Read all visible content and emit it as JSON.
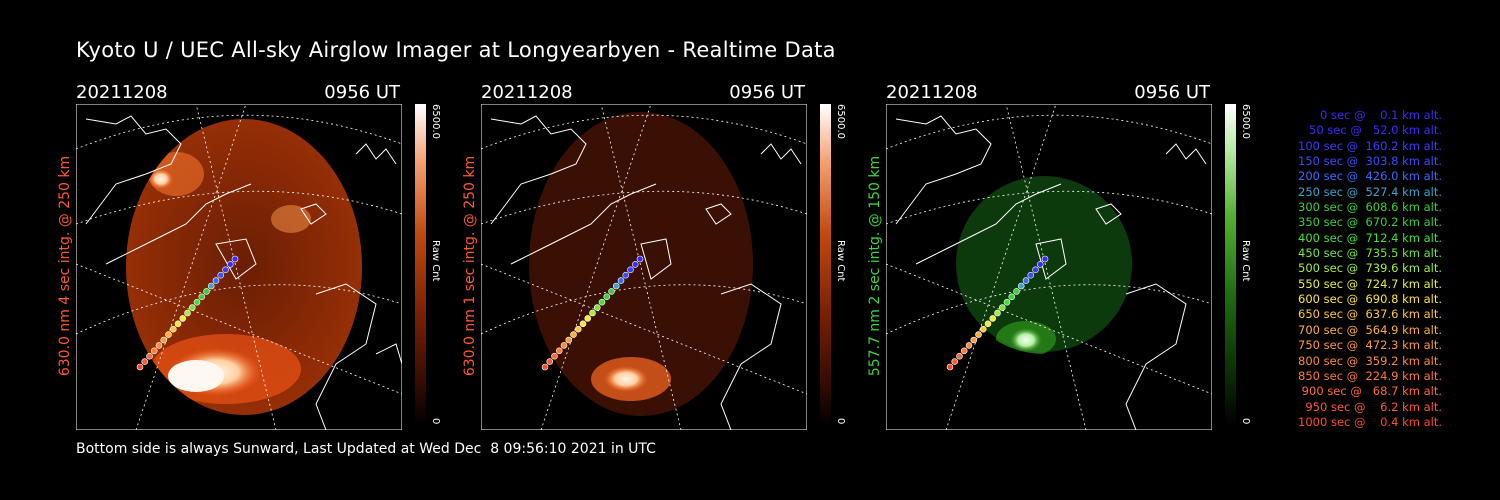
{
  "title": "Kyoto U / UEC All-sky Airglow Imager at Longyearbyen - Realtime Data",
  "panels": [
    {
      "date": "20211208",
      "time": "0956 UT",
      "ylabel": "630.0 nm 4 sec intg. @ 250 km",
      "cbar_max": "6500.0",
      "cbar_unit": "Raw Cnt",
      "cbar_min": "0",
      "color": "#ff5a2a"
    },
    {
      "date": "20211208",
      "time": "0956 UT",
      "ylabel": "630.0 nm 1 sec intg. @ 250 km",
      "cbar_max": "6500.0",
      "cbar_unit": "Raw Cnt",
      "cbar_min": "0",
      "color": "#ff5a2a"
    },
    {
      "date": "20211208",
      "time": "0956 UT",
      "ylabel": "557.7 nm 2 sec intg. @ 150 km",
      "cbar_max": "6500.0",
      "cbar_unit": "Raw Cnt",
      "cbar_min": "0",
      "color": "#3fd33f"
    }
  ],
  "legend": [
    {
      "text": "   0 sec @    0.1 km alt.",
      "color": "#3b2bff"
    },
    {
      "text": "  50 sec @   52.0 km alt.",
      "color": "#3b2bff"
    },
    {
      "text": " 100 sec @  160.2 km alt.",
      "color": "#3b3bff"
    },
    {
      "text": " 150 sec @  303.8 km alt.",
      "color": "#3b4bff"
    },
    {
      "text": " 200 sec @  426.0 km alt.",
      "color": "#3b6cff"
    },
    {
      "text": " 250 sec @  527.4 km alt.",
      "color": "#3aa6d0"
    },
    {
      "text": " 300 sec @  608.6 km alt.",
      "color": "#3ad03a"
    },
    {
      "text": " 350 sec @  670.2 km alt.",
      "color": "#3ad03a"
    },
    {
      "text": " 400 sec @  712.4 km alt.",
      "color": "#44e03a"
    },
    {
      "text": " 450 sec @  735.5 km alt.",
      "color": "#70e83a"
    },
    {
      "text": " 500 sec @  739.6 km alt.",
      "color": "#a4ef3a"
    },
    {
      "text": " 550 sec @  724.7 km alt.",
      "color": "#e8ee3a"
    },
    {
      "text": " 600 sec @  690.8 km alt.",
      "color": "#ffe53a"
    },
    {
      "text": " 650 sec @  637.6 km alt.",
      "color": "#ffc83a"
    },
    {
      "text": " 700 sec @  564.9 km alt.",
      "color": "#ffae3a"
    },
    {
      "text": " 750 sec @  472.3 km alt.",
      "color": "#ff9a3a"
    },
    {
      "text": " 800 sec @  359.2 km alt.",
      "color": "#ff8a3a"
    },
    {
      "text": " 850 sec @  224.9 km alt.",
      "color": "#ff7a3a"
    },
    {
      "text": " 900 sec @   68.7 km alt.",
      "color": "#ff6a3a"
    },
    {
      "text": " 950 sec @    6.2 km alt.",
      "color": "#ff5a3a"
    },
    {
      "text": "1000 sec @    0.4 km alt.",
      "color": "#ff4a2a"
    }
  ],
  "footer": "Bottom side is always Sunward, Last Updated at Wed Dec  8 09:56:10 2021 in UTC"
}
